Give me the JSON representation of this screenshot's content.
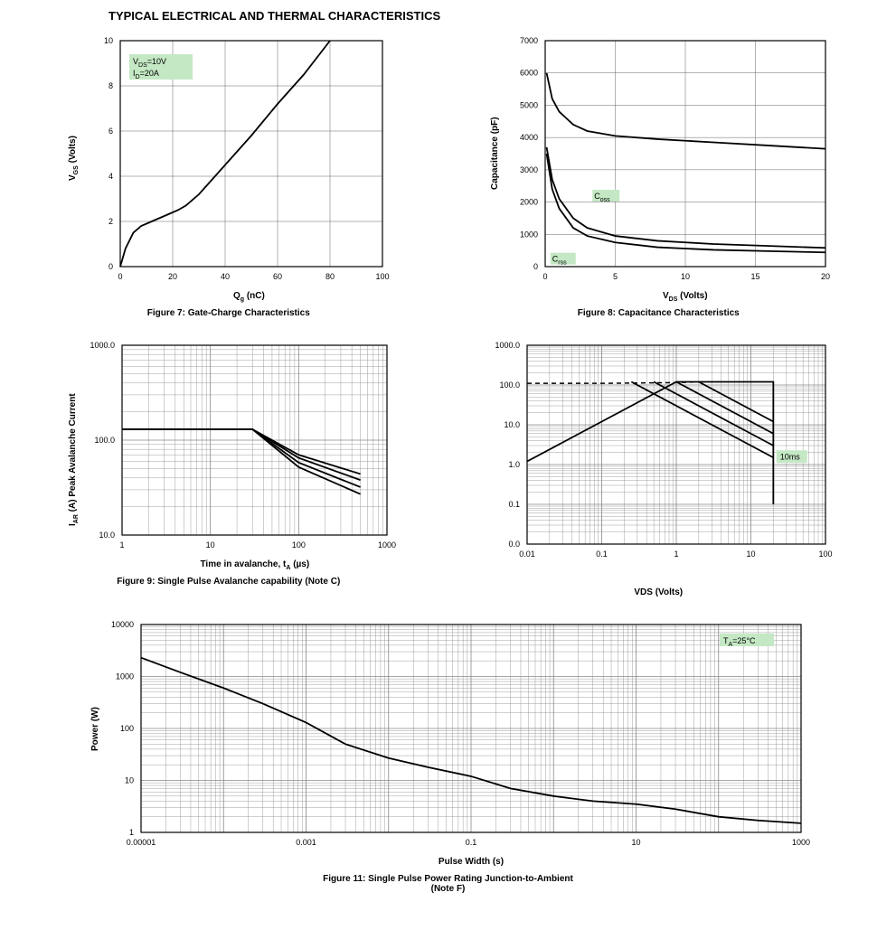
{
  "page_title": "TYPICAL ELECTRICAL AND THERMAL CHARACTERISTICS",
  "fig7": {
    "caption": "Figure 7: Gate-Charge Characteristics",
    "xlabel": "Qg (nC)",
    "ylabel": "VGS (Volts)",
    "xlim": [
      0,
      100
    ],
    "ylim": [
      0,
      10
    ],
    "xticks": [
      0,
      20,
      40,
      60,
      80,
      100
    ],
    "yticks": [
      0,
      2,
      4,
      6,
      8,
      10
    ],
    "annotation_lines": [
      "VDS=10V",
      "ID=20A"
    ],
    "annotation_bg": "#c4e8c4",
    "line_color": "#000000",
    "line_width": 1.8,
    "grid_color": "#666666",
    "border_color": "#000000",
    "curve": [
      [
        0,
        0
      ],
      [
        2,
        0.8
      ],
      [
        5,
        1.5
      ],
      [
        8,
        1.8
      ],
      [
        12,
        2.0
      ],
      [
        18,
        2.3
      ],
      [
        22,
        2.5
      ],
      [
        25,
        2.7
      ],
      [
        30,
        3.2
      ],
      [
        40,
        4.5
      ],
      [
        50,
        5.8
      ],
      [
        60,
        7.2
      ],
      [
        70,
        8.5
      ],
      [
        80,
        10.0
      ]
    ]
  },
  "fig8": {
    "caption": "Figure 8: Capacitance Characteristics",
    "xlabel": "VDS (Volts)",
    "ylabel": "Capacitance (pF)",
    "xlim": [
      0,
      20
    ],
    "ylim": [
      0,
      7000
    ],
    "xticks": [
      0,
      5,
      10,
      15,
      20
    ],
    "yticks": [
      0,
      1000,
      2000,
      3000,
      4000,
      5000,
      6000,
      7000
    ],
    "line_color": "#000000",
    "line_width": 1.8,
    "grid_color": "#666666",
    "border_color": "#000000",
    "labels": {
      "coss": "Coss",
      "crss": "Crss"
    },
    "label_bg": "#c4e8c4",
    "curves": {
      "ciss": [
        [
          0.1,
          6000
        ],
        [
          0.5,
          5200
        ],
        [
          1,
          4800
        ],
        [
          2,
          4400
        ],
        [
          3,
          4200
        ],
        [
          5,
          4050
        ],
        [
          8,
          3950
        ],
        [
          12,
          3850
        ],
        [
          16,
          3750
        ],
        [
          20,
          3650
        ]
      ],
      "coss": [
        [
          0.1,
          3700
        ],
        [
          0.5,
          2700
        ],
        [
          1,
          2100
        ],
        [
          2,
          1500
        ],
        [
          3,
          1200
        ],
        [
          5,
          950
        ],
        [
          8,
          800
        ],
        [
          12,
          700
        ],
        [
          16,
          640
        ],
        [
          20,
          580
        ]
      ],
      "crss": [
        [
          0.1,
          3500
        ],
        [
          0.5,
          2400
        ],
        [
          1,
          1800
        ],
        [
          2,
          1200
        ],
        [
          3,
          950
        ],
        [
          5,
          750
        ],
        [
          8,
          600
        ],
        [
          12,
          520
        ],
        [
          16,
          480
        ],
        [
          20,
          440
        ]
      ]
    }
  },
  "fig9": {
    "caption": "Figure 9: Single Pulse Avalanche capability (Note C)",
    "xlabel": "Time in avalanche, tA (µs)",
    "ylabel": "IAR (A) Peak Avalanche Current",
    "xlim_log": [
      1,
      1000
    ],
    "ylim_log": [
      10,
      1000
    ],
    "xticks": [
      1,
      10,
      100,
      1000
    ],
    "yticks": [
      "10.0",
      "100.0",
      "1000.0"
    ],
    "line_color": "#000000",
    "line_width": 1.8,
    "grid_color": "#888888",
    "border_color": "#000000",
    "curves": [
      [
        [
          1,
          130
        ],
        [
          30,
          130
        ],
        [
          100,
          70
        ],
        [
          500,
          44
        ]
      ],
      [
        [
          1,
          130
        ],
        [
          30,
          130
        ],
        [
          100,
          65
        ],
        [
          500,
          38
        ]
      ],
      [
        [
          1,
          130
        ],
        [
          30,
          130
        ],
        [
          100,
          58
        ],
        [
          500,
          32
        ]
      ],
      [
        [
          1,
          130
        ],
        [
          30,
          130
        ],
        [
          100,
          52
        ],
        [
          500,
          27
        ]
      ]
    ]
  },
  "fig10": {
    "xlabel": "VDS (Volts)",
    "xlim_log": [
      0.01,
      100
    ],
    "ylim_log": [
      0.01,
      1000
    ],
    "xticks": [
      0.01,
      0.1,
      1,
      10,
      100
    ],
    "yticks": [
      "0.0",
      "0.1",
      "1.0",
      "10.0",
      "100.0",
      "1000.0"
    ],
    "annotation": "10ms",
    "annotation_bg": "#c4e8c4",
    "line_color": "#000000",
    "line_width": 1.8,
    "grid_color": "#888888",
    "border_color": "#000000",
    "dashed_curve": [
      [
        0.01,
        110
      ],
      [
        0.1,
        110
      ],
      [
        1,
        115
      ],
      [
        2,
        120
      ]
    ],
    "soa_top": [
      [
        0.01,
        1.2
      ],
      [
        0.1,
        12
      ],
      [
        1,
        120
      ],
      [
        2,
        120
      ],
      [
        20,
        120
      ],
      [
        20,
        0.1
      ]
    ],
    "diag_curves": [
      [
        [
          0.25,
          120
        ],
        [
          20,
          1.5
        ]
      ],
      [
        [
          0.5,
          120
        ],
        [
          20,
          3
        ]
      ],
      [
        [
          1,
          120
        ],
        [
          20,
          6
        ]
      ],
      [
        [
          2,
          120
        ],
        [
          20,
          12
        ]
      ]
    ]
  },
  "fig11": {
    "caption": "Figure 11: Single Pulse Power Rating Junction-to-Ambient (Note F)",
    "xlabel": "Pulse Width (s)",
    "ylabel": "Power (W)",
    "xlim_log": [
      1e-05,
      1000
    ],
    "ylim_log": [
      1,
      10000
    ],
    "xticks": [
      1e-05,
      0.001,
      0.1,
      10,
      1000
    ],
    "yticks": [
      1,
      10,
      100,
      1000,
      10000
    ],
    "annotation": "TA=25°C",
    "annotation_bg": "#c4e8c4",
    "line_color": "#000000",
    "line_width": 1.8,
    "grid_color": "#888888",
    "border_color": "#000000",
    "curve": [
      [
        1e-05,
        2300
      ],
      [
        3e-05,
        1200
      ],
      [
        0.0001,
        600
      ],
      [
        0.0003,
        300
      ],
      [
        0.001,
        130
      ],
      [
        0.003,
        50
      ],
      [
        0.01,
        27
      ],
      [
        0.03,
        18
      ],
      [
        0.1,
        12
      ],
      [
        0.3,
        7
      ],
      [
        1,
        5
      ],
      [
        3,
        4
      ],
      [
        10,
        3.5
      ],
      [
        30,
        2.8
      ],
      [
        100,
        2.0
      ],
      [
        300,
        1.7
      ],
      [
        1000,
        1.5
      ]
    ]
  }
}
